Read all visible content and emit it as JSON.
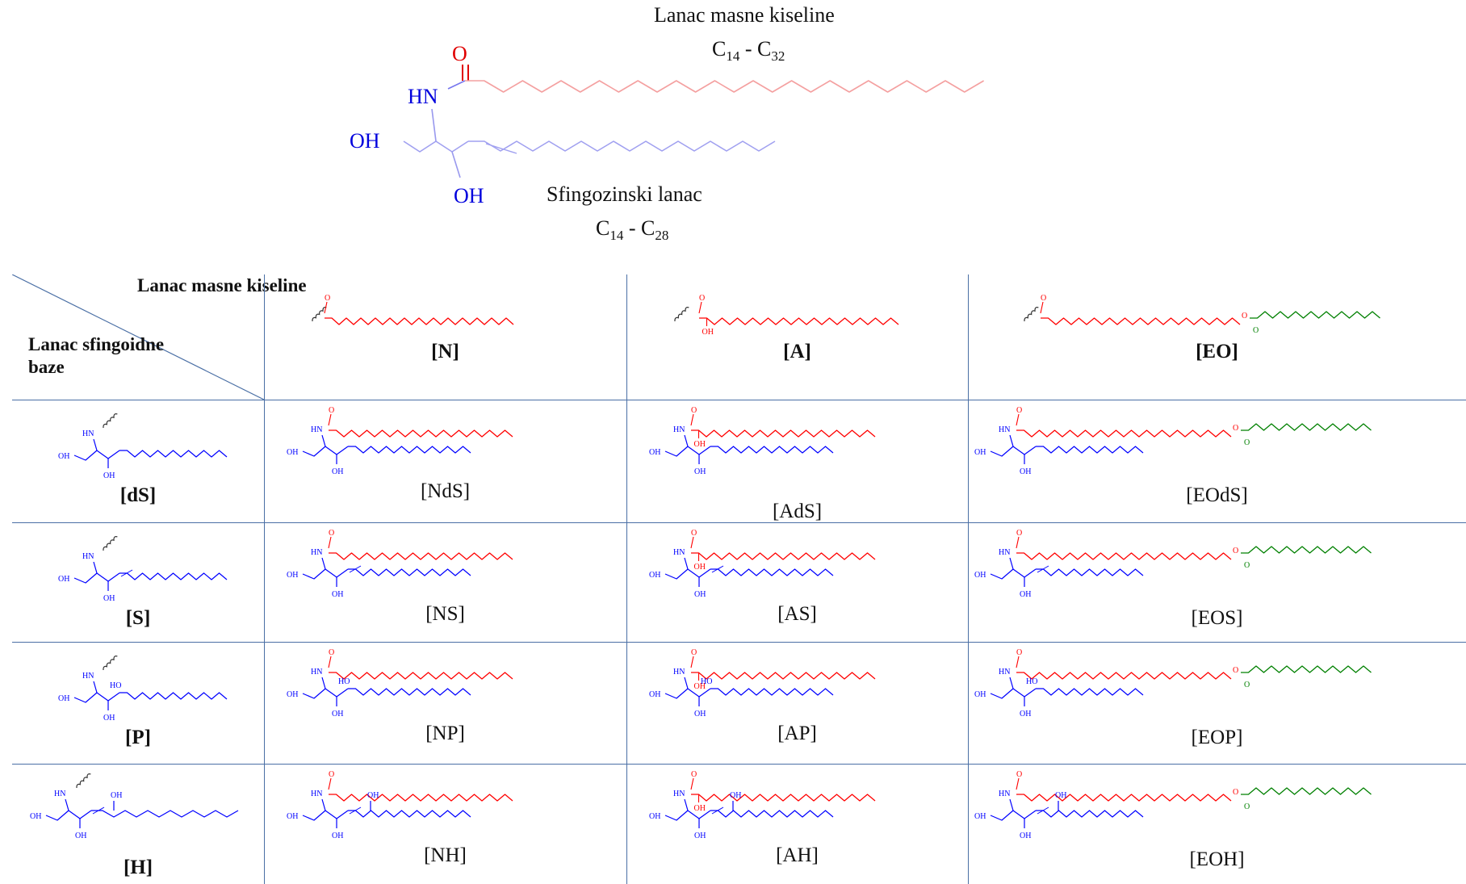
{
  "top": {
    "fatty_acid_label": "Lanac masne kiseline",
    "fatty_acid_range": {
      "a": "C",
      "a_sub": "14",
      "sep": " - C",
      "b_sub": "32"
    },
    "sphingosine_label": "Sfingozinski lanac",
    "sphingosine_range": {
      "a": "C",
      "a_sub": "14",
      "sep": " - C",
      "b_sub": "28"
    },
    "atoms": {
      "o": "O",
      "hn": "HN",
      "oh1": "OH",
      "oh2": "OH"
    }
  },
  "table": {
    "corner": {
      "top": "Lanac masne kiseline",
      "bottom": "Lanac sfingoidne baze"
    },
    "columns": [
      "[N]",
      "[A]",
      "[EO]"
    ],
    "rows": [
      {
        "label": "[dS]",
        "cells": [
          "[NdS]",
          "[AdS]",
          "[EOdS]"
        ]
      },
      {
        "label": "[S]",
        "cells": [
          "[NS]",
          "[AS]",
          "[EOS]"
        ]
      },
      {
        "label": "[P]",
        "cells": [
          "[NP]",
          "[AP]",
          "[EOP]"
        ]
      },
      {
        "label": "[H]",
        "cells": [
          "[NH]",
          "[AH]",
          "[EOH]"
        ]
      }
    ],
    "atom_text": {
      "o": "O",
      "hn": "HN",
      "oh": "OH",
      "ho": "HO"
    }
  },
  "colors": {
    "fatty_acid": "#ff0000",
    "sphingoid": "#0000ff",
    "ester_chain": "#008000",
    "top_fatty_acid": "#f4a0a0",
    "top_sphingoid": "#a0a0f0",
    "grid": "#4a6fa5"
  }
}
